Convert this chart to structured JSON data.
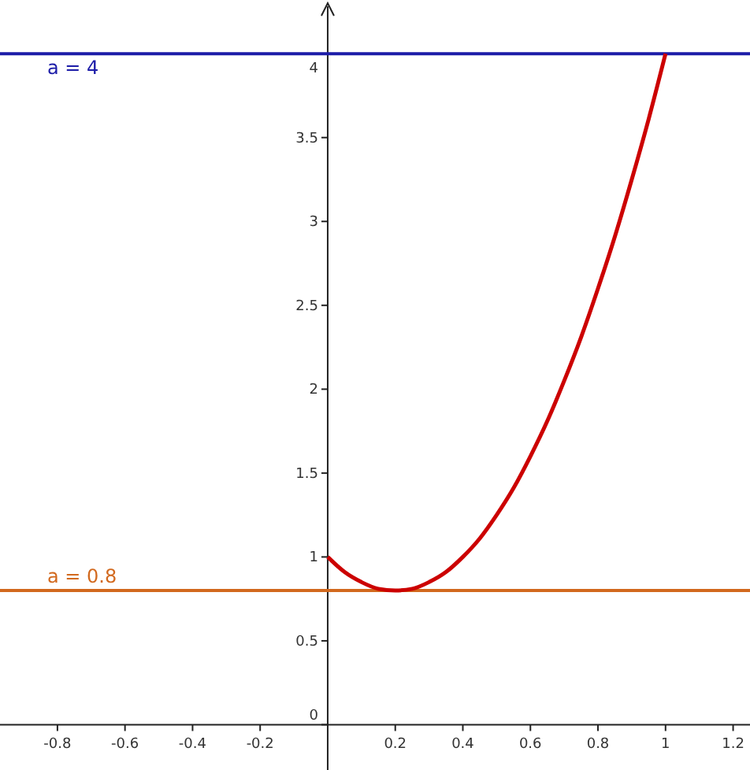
{
  "chart_data": {
    "type": "line",
    "x": [
      0,
      0.05,
      0.1,
      0.15,
      0.2,
      0.25,
      0.3,
      0.35,
      0.4,
      0.45,
      0.5,
      0.55,
      0.6,
      0.65,
      0.7,
      0.75,
      0.8,
      0.85,
      0.9,
      0.95,
      1
    ],
    "series": [
      {
        "color": "#cc0000",
        "values": [
          1,
          0.91,
          0.85,
          0.81,
          0.8,
          0.81,
          0.85,
          0.91,
          1,
          1.11,
          1.25,
          1.41,
          1.6,
          1.81,
          2.05,
          2.31,
          2.6,
          2.91,
          3.25,
          3.61,
          4
        ]
      }
    ],
    "xlim": [
      -0.97,
      1.25
    ],
    "ylim": [
      -0.27,
      4.32
    ],
    "xticks": [
      -0.8,
      -0.6,
      -0.4,
      -0.2,
      0.2,
      0.4,
      0.6,
      0.8,
      1,
      1.2
    ],
    "yticks": [
      0,
      0.5,
      1,
      1.5,
      2,
      2.5,
      3,
      3.5,
      4
    ],
    "ref_lines": [
      {
        "axis": "y",
        "value": 4,
        "label": "a = 4",
        "color": "#1c1ca8"
      },
      {
        "axis": "y",
        "value": 0.8,
        "label": "a = 0.8",
        "color": "#d2691e"
      }
    ],
    "marker": "none",
    "line_style": "solid"
  }
}
